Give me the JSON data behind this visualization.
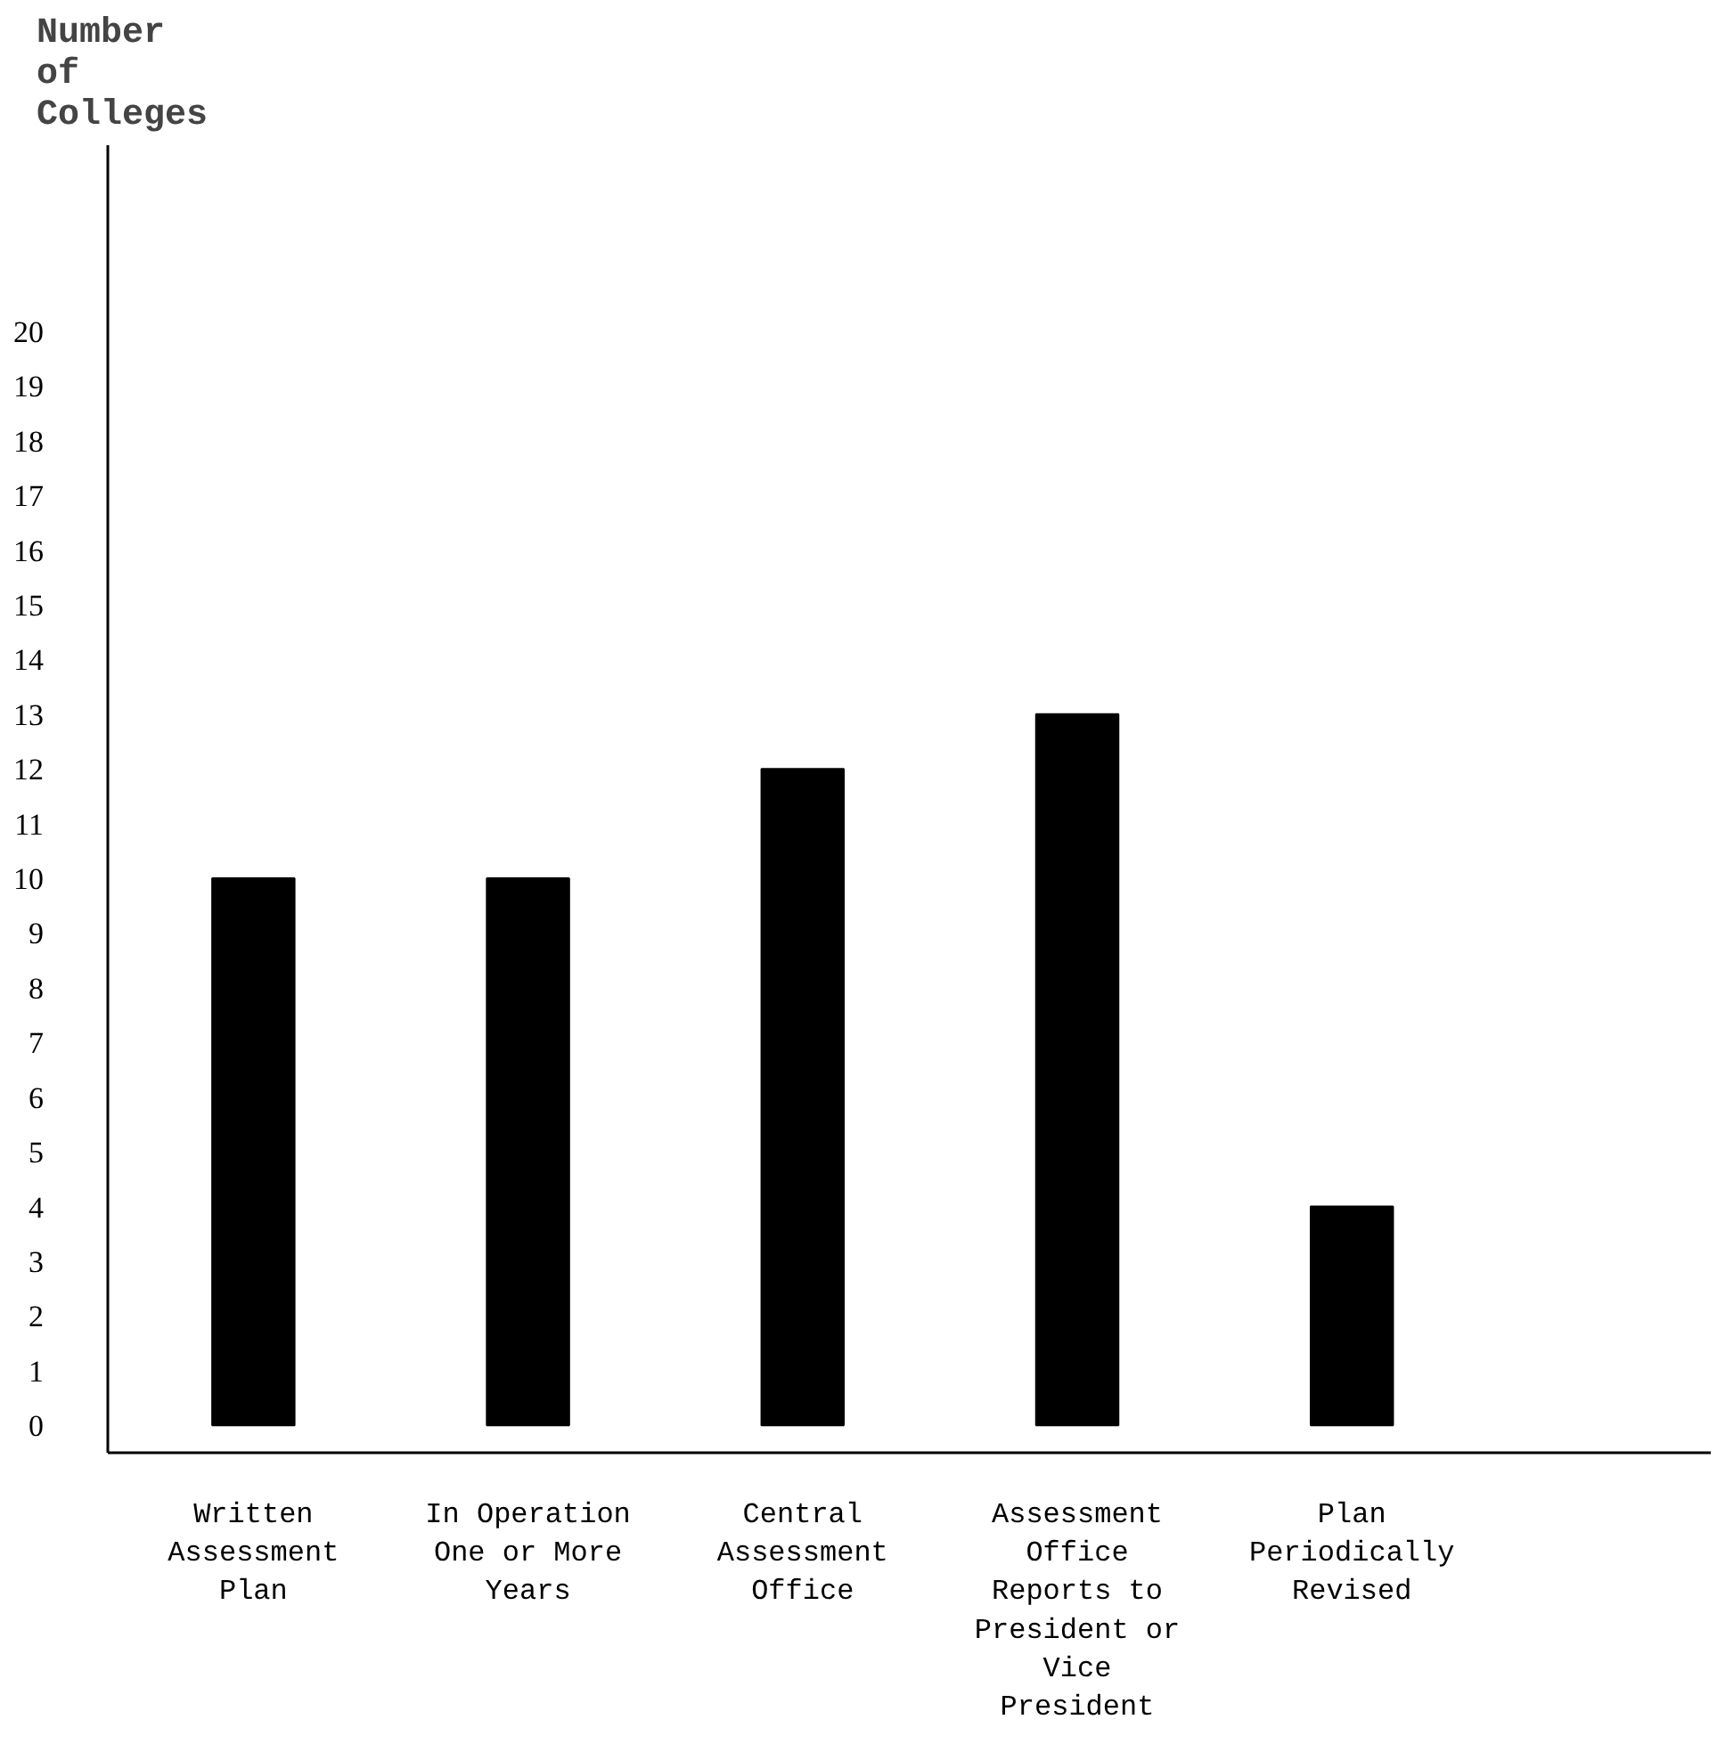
{
  "chart_data": {
    "type": "bar",
    "ylabel": "Number of Colleges",
    "categories": [
      "Written Assessment Plan",
      "In Operation One or More Years",
      "Central Assessment Office",
      "Assessment Office Reports to President or Vice President",
      "Plan Periodically Revised"
    ],
    "values": [
      10,
      10,
      12,
      13,
      4
    ],
    "color": "#000000",
    "ylim": [
      -0.5,
      23.4
    ],
    "yticks": [
      0,
      1,
      2,
      3,
      4,
      5,
      6,
      7,
      8,
      9,
      10,
      11,
      12,
      13,
      14,
      15,
      16,
      17,
      18,
      19,
      20
    ],
    "grid": false
  }
}
